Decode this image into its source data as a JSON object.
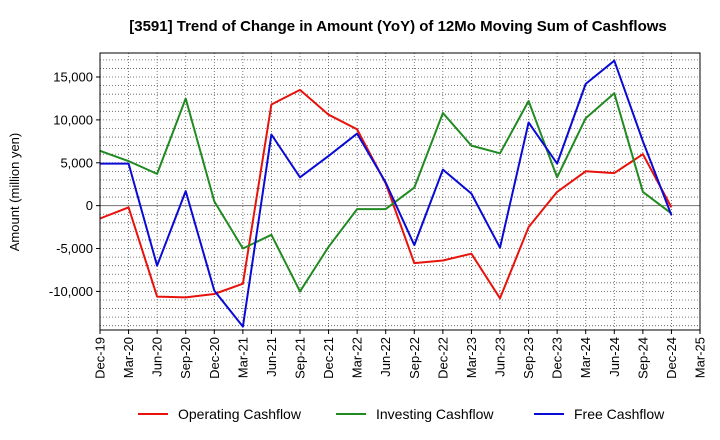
{
  "chart_data": {
    "type": "line",
    "title": "[3591]  Trend of Change in Amount (YoY) of 12Mo Moving Sum of Cashflows",
    "xlabel": "",
    "ylabel": "Amount (million yen)",
    "ylim": [
      -14500,
      17800
    ],
    "yticks": [
      15000,
      10000,
      5000,
      0,
      -5000,
      -10000
    ],
    "ytick_labels": [
      "15,000",
      "10,000",
      "5,000",
      "0",
      "-5,000",
      "-10,000"
    ],
    "grid": true,
    "legend_position": "bottom",
    "categories": [
      "Dec-19",
      "Mar-20",
      "Jun-20",
      "Sep-20",
      "Dec-20",
      "Mar-21",
      "Jun-21",
      "Sep-21",
      "Dec-21",
      "Mar-22",
      "Jun-22",
      "Sep-22",
      "Dec-22",
      "Mar-23",
      "Jun-23",
      "Sep-23",
      "Dec-23",
      "Mar-24",
      "Jun-24",
      "Sep-24",
      "Dec-24",
      "Mar-25"
    ],
    "series": [
      {
        "name": "Operating Cashflow",
        "color": "#e8120c",
        "values": [
          -1500,
          -200,
          -10600,
          -10700,
          -10300,
          -9100,
          11800,
          13500,
          10600,
          8900,
          2600,
          -6700,
          -6400,
          -5600,
          -10800,
          -2500,
          1600,
          4000,
          3800,
          6000,
          -200,
          null
        ]
      },
      {
        "name": "Investing Cashflow",
        "color": "#218a21",
        "values": [
          6400,
          5200,
          3700,
          12500,
          500,
          -5000,
          -3400,
          -10000,
          -4800,
          -400,
          -400,
          2100,
          10800,
          7000,
          6100,
          12200,
          3300,
          10200,
          13100,
          1600,
          -900,
          null
        ]
      },
      {
        "name": "Free Cashflow",
        "color": "#0a0ad6",
        "values": [
          4900,
          4900,
          -7000,
          1700,
          -9900,
          -14100,
          8300,
          3300,
          5800,
          8400,
          2700,
          -4600,
          4200,
          1400,
          -4900,
          9700,
          4900,
          14200,
          16900,
          7500,
          -1100,
          null
        ]
      }
    ]
  }
}
